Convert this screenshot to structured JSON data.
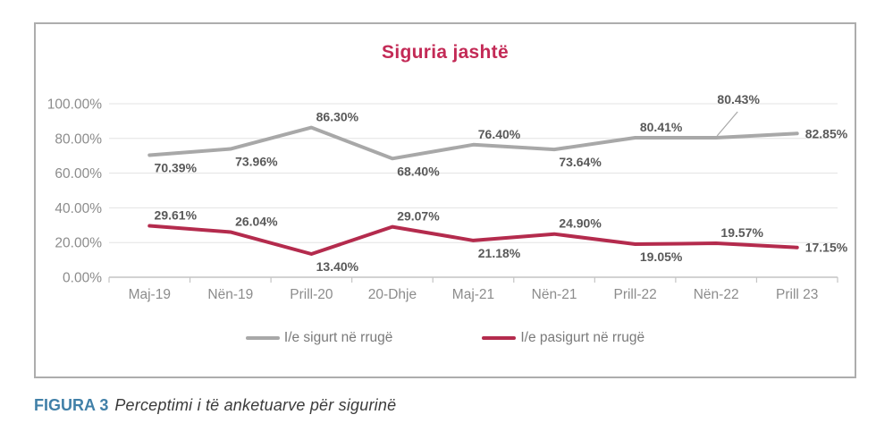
{
  "chart_data": {
    "type": "line",
    "title": "Siguria jashtë",
    "categories": [
      "Maj-19",
      "Nën-19",
      "Prill-20",
      "20-Dhje",
      "Maj-21",
      "Nën-21",
      "Prill-22",
      "Nën-22",
      "Prill 23"
    ],
    "series": [
      {
        "name": "I/e sigurt në rrugë",
        "color": "#A8A8A8",
        "values": [
          70.39,
          73.96,
          86.3,
          68.4,
          76.4,
          73.64,
          80.41,
          80.43,
          82.85
        ],
        "label_positions": [
          "below",
          "below",
          "above",
          "below",
          "above",
          "below",
          "above",
          "callout",
          "right"
        ]
      },
      {
        "name": "I/e pasigurt në rrugë",
        "color": "#B42B4D",
        "values": [
          29.61,
          26.04,
          13.4,
          29.07,
          21.18,
          24.9,
          19.05,
          19.57,
          17.15
        ],
        "label_positions": [
          "above",
          "above",
          "below",
          "above",
          "below",
          "above",
          "below",
          "above",
          "right"
        ]
      }
    ],
    "y_axis": {
      "min": 0,
      "max": 100,
      "step": 20,
      "ticks": [
        "0.00%",
        "20.00%",
        "40.00%",
        "60.00%",
        "80.00%",
        "100.00%"
      ]
    },
    "grid": true,
    "legend_position": "bottom",
    "label_format": "0.00%"
  },
  "caption": {
    "tag": "FIGURA 3",
    "text": "Perceptimi i të anketuarve për sigurinë"
  },
  "colors": {
    "title": "#C32A56",
    "data_label": "#595959",
    "axis_label": "#8C8C8C",
    "legend_text": "#7A7A7A",
    "gridline": "#E3E3E3",
    "axis_line": "#C4C4C4",
    "border": "#ADADAD",
    "figura_tag": "#4180A8",
    "caption_text": "#3B3B3B",
    "background": "#FFFFFF"
  }
}
